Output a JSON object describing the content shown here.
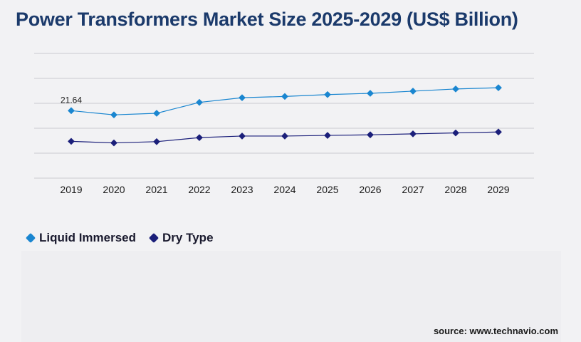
{
  "title": "Power Transformers Market Size 2025-2029 (US$ Billion)",
  "source": "source: www.technavio.com",
  "chart_data": {
    "type": "line",
    "title": "Power Transformers Market Size 2025-2029 (US$ Billion)",
    "x": [
      "2019",
      "2020",
      "2021",
      "2022",
      "2023",
      "2024",
      "2025",
      "2026",
      "2027",
      "2028",
      "2029"
    ],
    "series": [
      {
        "name": "Liquid Immersed",
        "color": "#1a86d0",
        "values": [
          21.64,
          20.3,
          20.8,
          24.3,
          25.8,
          26.2,
          26.8,
          27.2,
          27.9,
          28.6,
          29.0
        ],
        "data_labels": {
          "2019": "21.64"
        }
      },
      {
        "name": "Dry Type",
        "color": "#1b1f7a",
        "values": [
          11.8,
          11.3,
          11.7,
          13.0,
          13.5,
          13.5,
          13.7,
          13.9,
          14.2,
          14.5,
          14.8
        ]
      }
    ],
    "ylim": [
      0,
      40
    ],
    "y_axis_labels_shown": false,
    "grid": true,
    "legend_position": "bottom-left"
  },
  "colors": {
    "title": "#1b3a6b",
    "grid": "#c9c9cf",
    "background": "#f2f2f4"
  },
  "legend": {
    "items": [
      {
        "label": "Liquid Immersed",
        "color": "#1a86d0"
      },
      {
        "label": "Dry Type",
        "color": "#1b1f7a"
      }
    ]
  }
}
